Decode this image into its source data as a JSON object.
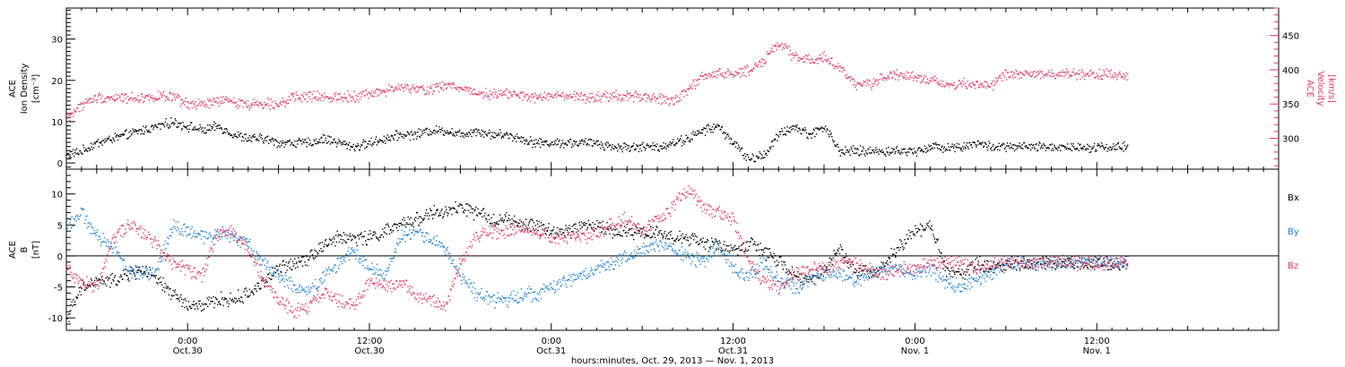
{
  "chart_data": [
    {
      "type": "scatter",
      "panel": "top",
      "ylabel_lines": [
        "ACE",
        "Ion Density",
        "[cm⁻³]"
      ],
      "ylim": [
        -1.5,
        37.5
      ],
      "yticks": [
        0,
        10,
        20,
        30
      ],
      "y2label_lines": [
        "ACE",
        "Velocity",
        "[km/s]"
      ],
      "y2lim": [
        255,
        490
      ],
      "y2ticks": [
        300,
        350,
        400,
        450
      ],
      "colors": {
        "density": "#000000",
        "velocity": "#e8345f"
      },
      "series": [
        {
          "name": "",
          "axis": "left",
          "color": "#000000",
          "x": [
            0,
            1,
            2,
            3,
            4,
            5,
            6,
            7,
            8,
            9,
            10,
            11,
            12,
            13,
            14,
            15,
            16,
            17,
            18,
            19,
            20,
            21,
            22,
            23,
            24,
            25,
            26,
            27,
            28,
            29,
            30,
            31,
            32,
            33,
            34,
            35,
            36,
            37,
            38,
            39,
            40,
            41,
            42,
            43,
            44,
            45,
            46,
            47,
            48,
            49,
            50,
            51,
            52,
            53,
            54,
            55,
            56,
            57,
            58,
            59,
            60,
            61,
            62
          ],
          "y": [
            2,
            3,
            5,
            6,
            7,
            8,
            9,
            10,
            9,
            8,
            9,
            7,
            6,
            6,
            5,
            5,
            5,
            6,
            5,
            4,
            5,
            6,
            7,
            7,
            8,
            8,
            7,
            8,
            7,
            7,
            6,
            5,
            5,
            5,
            5,
            5,
            4,
            4,
            4,
            4,
            5,
            6,
            8,
            9,
            5,
            1,
            2,
            7,
            9,
            7,
            9,
            3,
            3,
            3,
            3,
            3,
            3,
            4,
            4,
            4,
            5,
            4,
            4
          ]
        },
        {
          "name": "",
          "axis": "right",
          "color": "#e8345f",
          "x": [
            0,
            1,
            2,
            3,
            4,
            5,
            6,
            7,
            8,
            9,
            10,
            11,
            12,
            13,
            14,
            15,
            16,
            17,
            18,
            19,
            20,
            21,
            22,
            23,
            24,
            25,
            26,
            27,
            28,
            29,
            30,
            31,
            32,
            33,
            34,
            35,
            36,
            37,
            38,
            39,
            40,
            41,
            42,
            43,
            44,
            45,
            46,
            47,
            48,
            49,
            50,
            51,
            52,
            53,
            54,
            55,
            56,
            57,
            58,
            59,
            60,
            61,
            62
          ],
          "y": [
            330,
            350,
            360,
            360,
            360,
            360,
            362,
            360,
            350,
            350,
            355,
            355,
            350,
            352,
            352,
            360,
            362,
            360,
            362,
            362,
            366,
            370,
            375,
            372,
            372,
            378,
            375,
            368,
            365,
            368,
            362,
            360,
            362,
            362,
            360,
            360,
            362,
            362,
            362,
            358,
            356,
            370,
            392,
            395,
            395,
            400,
            415,
            440,
            420,
            415,
            420,
            402,
            380,
            380,
            392,
            394,
            390,
            385,
            380,
            380,
            380,
            378,
            394
          ]
        }
      ]
    },
    {
      "type": "scatter",
      "panel": "bottom",
      "ylabel_lines": [
        "ACE",
        "B",
        "[nT]"
      ],
      "ylim": [
        -12,
        14
      ],
      "yticks": [
        -10,
        -5,
        0,
        5,
        10
      ],
      "zero_line": true,
      "legend_position": "right",
      "colors": {
        "Bx": "#000000",
        "By": "#1a80d8",
        "Bz": "#e8345f"
      },
      "series": [
        {
          "name": "Bx",
          "color": "#000000",
          "x": [
            0,
            1,
            2,
            3,
            4,
            5,
            6,
            7,
            8,
            9,
            10,
            11,
            12,
            13,
            14,
            15,
            16,
            17,
            18,
            19,
            20,
            21,
            22,
            23,
            24,
            25,
            26,
            27,
            28,
            29,
            30,
            31,
            32,
            33,
            34,
            35,
            36,
            37,
            38,
            39,
            40,
            41,
            42,
            43,
            44,
            45,
            46,
            47,
            48,
            49,
            50,
            51,
            52,
            53,
            54,
            55,
            56,
            57,
            58,
            59,
            60,
            61,
            62
          ],
          "y": [
            -10,
            -5,
            -4,
            -4,
            -3,
            -2,
            -4,
            -6,
            -8,
            -8,
            -7,
            -7,
            -6,
            -4,
            -2,
            -1,
            0,
            2,
            3,
            3,
            3,
            4,
            5,
            6,
            7,
            7,
            8,
            7,
            6,
            6,
            5,
            5,
            4,
            4,
            5,
            5,
            4,
            4,
            4,
            4,
            3,
            3,
            2,
            2,
            1,
            2,
            1,
            -1,
            -3,
            -4,
            -2,
            1,
            -2,
            -3,
            -1,
            2,
            4,
            5,
            -2,
            -3,
            -1,
            -2,
            -1
          ]
        },
        {
          "name": "By",
          "color": "#1a80d8",
          "x": [
            0,
            1,
            2,
            3,
            4,
            5,
            6,
            7,
            8,
            9,
            10,
            11,
            12,
            13,
            14,
            15,
            16,
            17,
            18,
            19,
            20,
            21,
            22,
            23,
            24,
            25,
            26,
            27,
            28,
            29,
            30,
            31,
            32,
            33,
            34,
            35,
            36,
            37,
            38,
            39,
            40,
            41,
            42,
            43,
            44,
            45,
            46,
            47,
            48,
            49,
            50,
            51,
            52,
            53,
            54,
            55,
            56,
            57,
            58,
            59,
            60,
            61,
            62
          ],
          "y": [
            5,
            7,
            3,
            2,
            -2,
            -3,
            -2,
            5,
            4,
            3,
            4,
            3,
            2,
            -1,
            -3,
            -5,
            -6,
            -3,
            -1,
            1,
            -2,
            -3,
            3,
            4,
            3,
            1,
            -3,
            -6,
            -7,
            -7,
            -6,
            -6,
            -5,
            -4,
            -3,
            -2,
            -1,
            0,
            1,
            2,
            1,
            0,
            -1,
            2,
            -2,
            -3,
            -1,
            -4,
            -5,
            -4,
            -3,
            -3,
            -4,
            -3,
            -2,
            -2,
            -3,
            -2,
            -4,
            -5,
            -4,
            -3,
            -1
          ]
        },
        {
          "name": "Bz",
          "color": "#e8345f",
          "x": [
            0,
            1,
            2,
            3,
            4,
            5,
            6,
            7,
            8,
            9,
            10,
            11,
            12,
            13,
            14,
            15,
            16,
            17,
            18,
            19,
            20,
            21,
            22,
            23,
            24,
            25,
            26,
            27,
            28,
            29,
            30,
            31,
            32,
            33,
            34,
            35,
            36,
            37,
            38,
            39,
            40,
            41,
            42,
            43,
            44,
            45,
            46,
            47,
            48,
            49,
            50,
            51,
            52,
            53,
            54,
            55,
            56,
            57,
            58,
            59,
            60,
            61,
            62
          ],
          "y": [
            -2,
            -4,
            -5,
            3,
            5,
            4,
            2,
            -1,
            -2,
            -3,
            4,
            4,
            1,
            -4,
            -7,
            -9,
            -8,
            -6,
            -7,
            -8,
            -4,
            -5,
            -4,
            -6,
            -7,
            -8,
            -1,
            3,
            4,
            4,
            5,
            4,
            3,
            3,
            3,
            4,
            5,
            6,
            4,
            6,
            8,
            11,
            8,
            7,
            6,
            -1,
            -4,
            -5,
            -3,
            -2,
            -2,
            -1,
            -1,
            -2,
            -3,
            -2,
            -2,
            -1,
            -1,
            -1,
            -2,
            -1,
            -1
          ]
        }
      ]
    }
  ],
  "x_axis": {
    "caption": "hours:minutes, Oct. 29, 2013 — Nov.  1, 2013",
    "range_hours": [
      -8,
      72
    ],
    "data_extent_hours": [
      -8,
      62
    ],
    "major_ticks": [
      {
        "hour": 0,
        "time": "0:00",
        "date": "Oct.30"
      },
      {
        "hour": 12,
        "time": "12:00",
        "date": "Oct.30"
      },
      {
        "hour": 24,
        "time": "0:00",
        "date": "Oct.31"
      },
      {
        "hour": 36,
        "time": "12:00",
        "date": "Oct.31"
      },
      {
        "hour": 48,
        "time": "0:00",
        "date": "Nov. 1"
      },
      {
        "hour": 60,
        "time": "12:00",
        "date": "Nov. 1"
      }
    ]
  }
}
